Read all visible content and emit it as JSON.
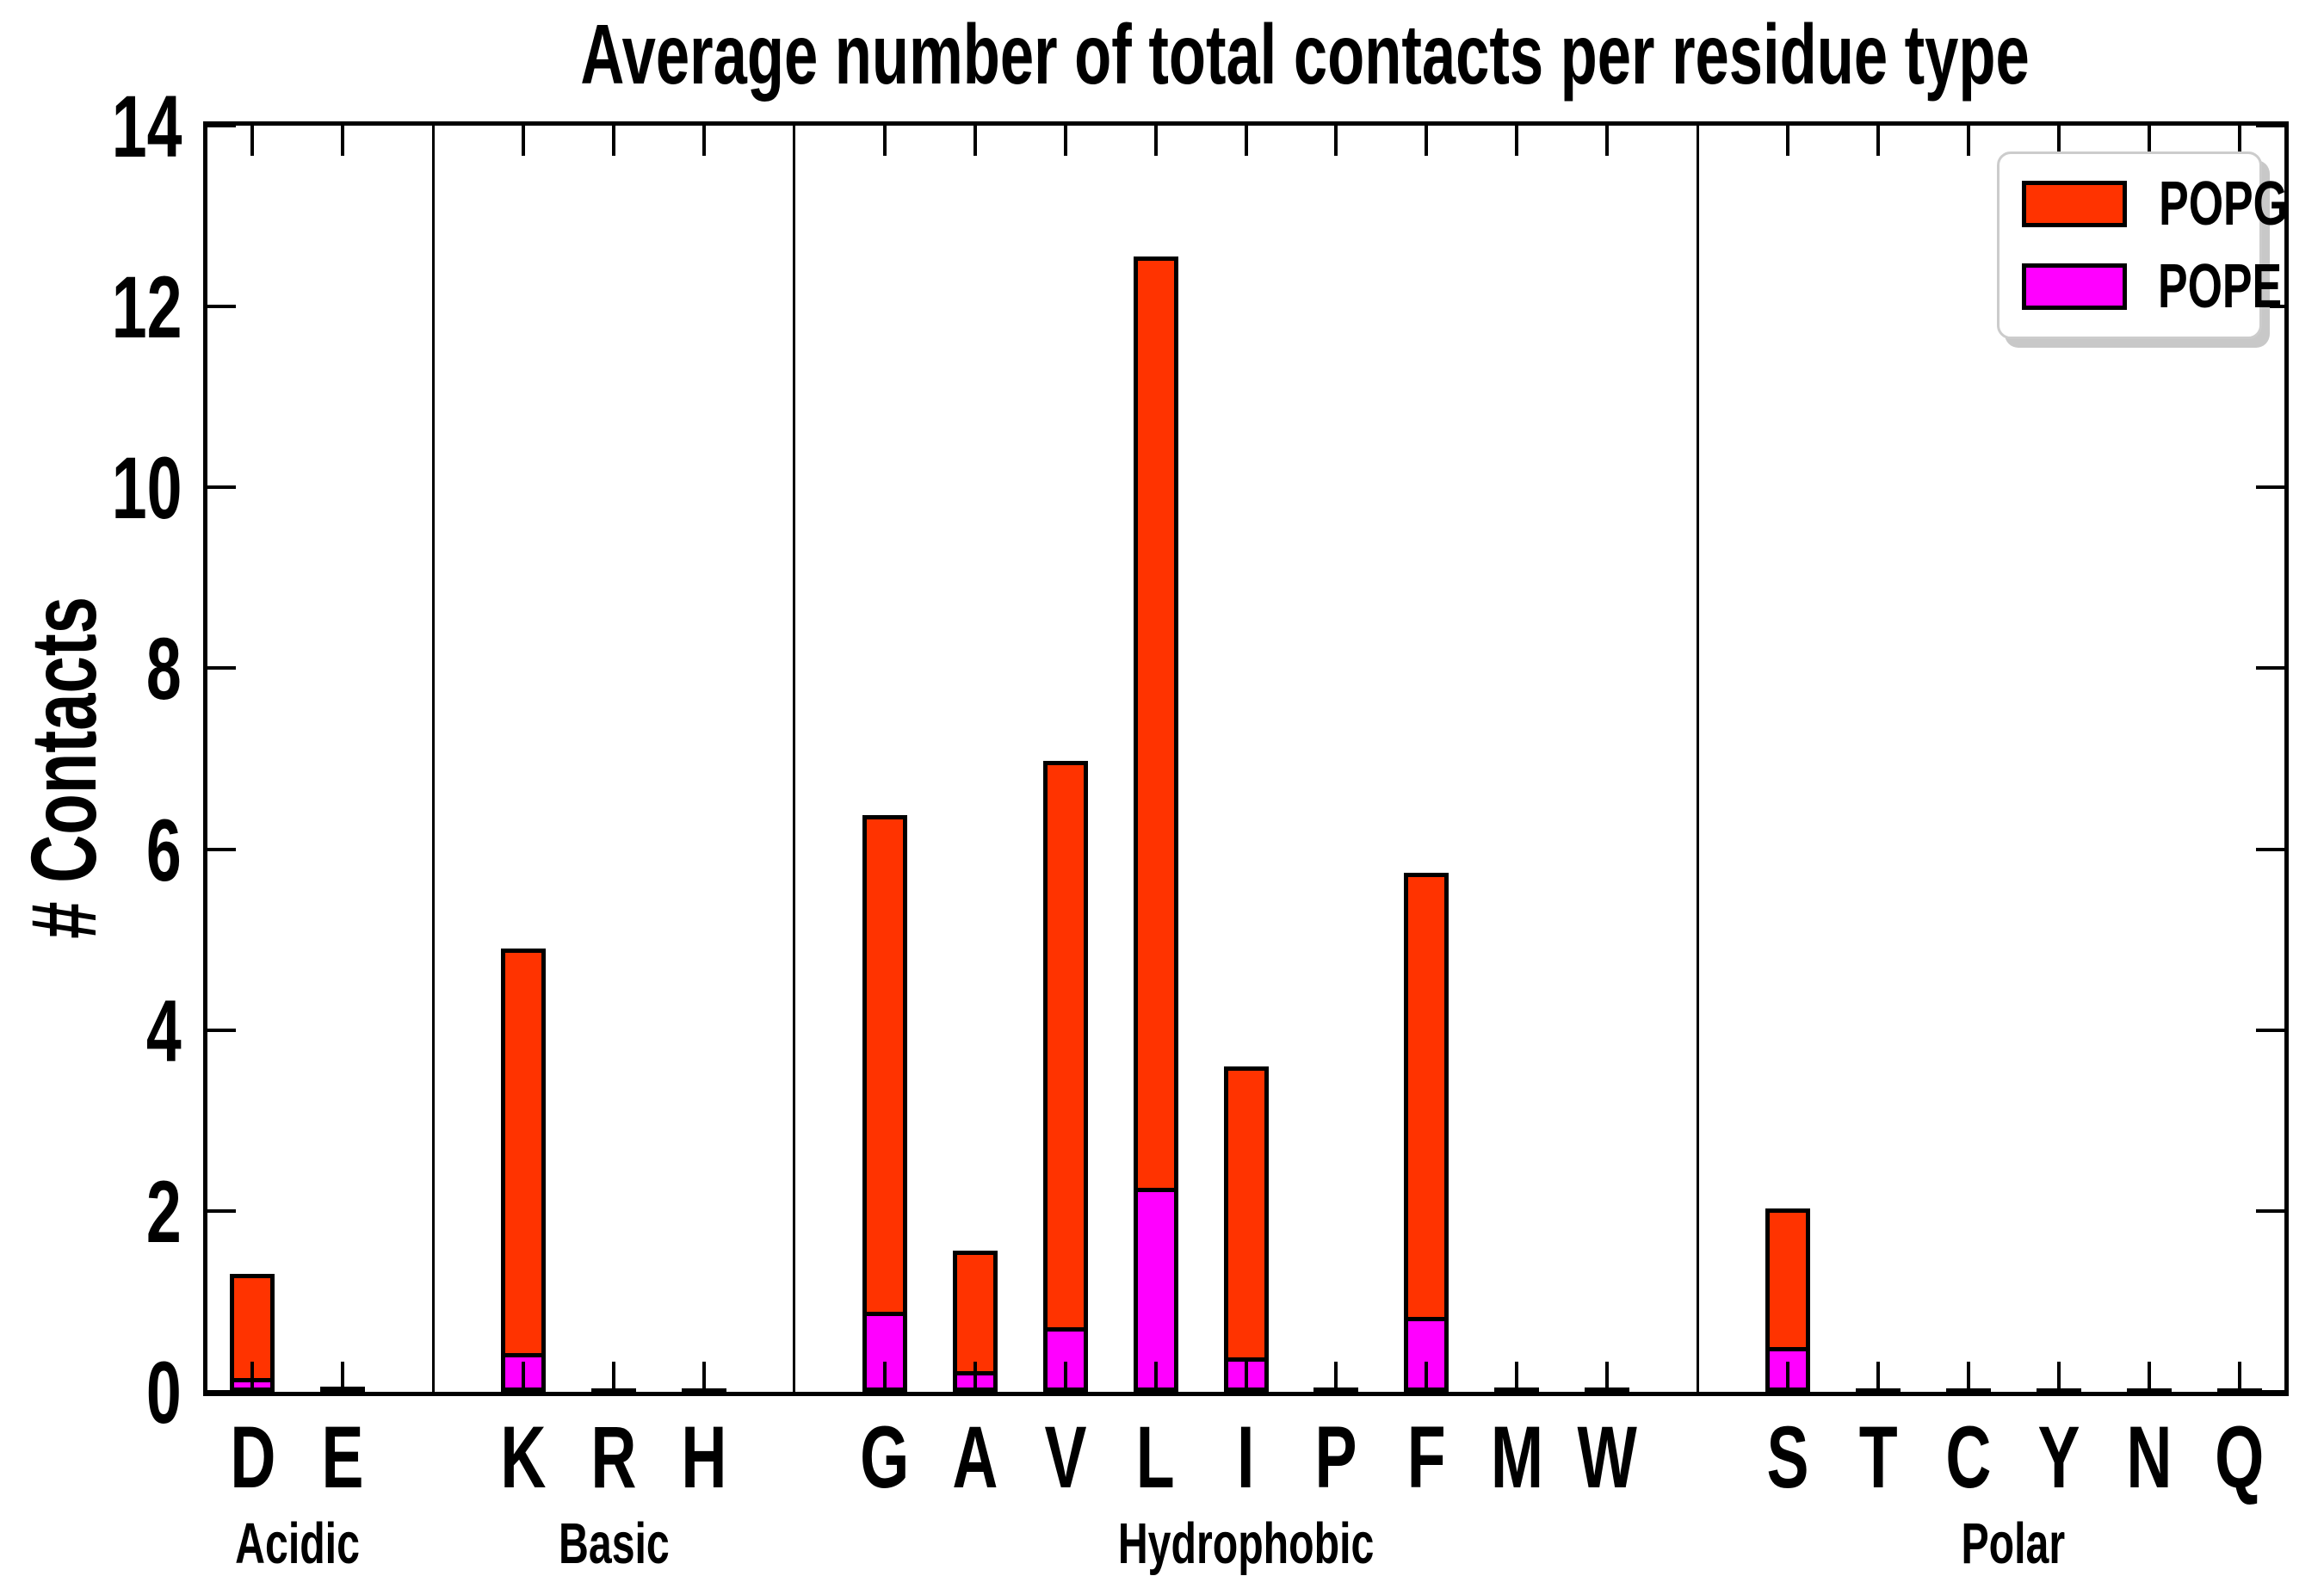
{
  "chart_data": {
    "type": "bar",
    "stacked": true,
    "title": "Average number of total contacts per residue type",
    "xlabel": "",
    "ylabel": "# Contacts",
    "ylim": [
      0,
      14
    ],
    "yticks": [
      0,
      2,
      4,
      6,
      8,
      10,
      12,
      14
    ],
    "grid": false,
    "legend_position": "upper right",
    "legend_items": [
      {
        "name": "POPG",
        "color": "#ff3300"
      },
      {
        "name": "POPE",
        "color": "#ff00ff"
      }
    ],
    "colors": {
      "POPG": "#ff3300",
      "POPE": "#ff00ff",
      "bar_edge": "#000000"
    },
    "groups": [
      {
        "label": "Acidic",
        "residues": [
          "D",
          "E"
        ]
      },
      {
        "label": "Basic",
        "residues": [
          "K",
          "R",
          "H"
        ]
      },
      {
        "label": "Hydrophobic",
        "residues": [
          "G",
          "A",
          "V",
          "L",
          "I",
          "P",
          "F",
          "M",
          "W"
        ]
      },
      {
        "label": "Polar",
        "residues": [
          "S",
          "T",
          "C",
          "Y",
          "N",
          "Q"
        ]
      }
    ],
    "bars": [
      {
        "residue": "D",
        "group": "Acidic",
        "POPE": 0.1,
        "total": 1.3
      },
      {
        "residue": "E",
        "group": "Acidic",
        "POPE": 0.01,
        "total": 0.04
      },
      {
        "residue": "K",
        "group": "Basic",
        "POPE": 0.38,
        "total": 4.9
      },
      {
        "residue": "R",
        "group": "Basic",
        "POPE": 0.01,
        "total": 0.02
      },
      {
        "residue": "H",
        "group": "Basic",
        "POPE": 0.01,
        "total": 0.02
      },
      {
        "residue": "G",
        "group": "Hydrophobic",
        "POPE": 0.84,
        "total": 6.38
      },
      {
        "residue": "A",
        "group": "Hydrophobic",
        "POPE": 0.18,
        "total": 1.56
      },
      {
        "residue": "V",
        "group": "Hydrophobic",
        "POPE": 0.67,
        "total": 6.98
      },
      {
        "residue": "L",
        "group": "Hydrophobic",
        "POPE": 2.21,
        "total": 12.55
      },
      {
        "residue": "I",
        "group": "Hydrophobic",
        "POPE": 0.33,
        "total": 3.6
      },
      {
        "residue": "P",
        "group": "Hydrophobic",
        "POPE": 0.01,
        "total": 0.03
      },
      {
        "residue": "F",
        "group": "Hydrophobic",
        "POPE": 0.78,
        "total": 5.74
      },
      {
        "residue": "M",
        "group": "Hydrophobic",
        "POPE": 0.01,
        "total": 0.03
      },
      {
        "residue": "W",
        "group": "Hydrophobic",
        "POPE": 0.01,
        "total": 0.03
      },
      {
        "residue": "S",
        "group": "Polar",
        "POPE": 0.45,
        "total": 2.03
      },
      {
        "residue": "T",
        "group": "Polar",
        "POPE": 0.01,
        "total": 0.02
      },
      {
        "residue": "C",
        "group": "Polar",
        "POPE": 0.01,
        "total": 0.02
      },
      {
        "residue": "Y",
        "group": "Polar",
        "POPE": 0.01,
        "total": 0.02
      },
      {
        "residue": "N",
        "group": "Polar",
        "POPE": 0.01,
        "total": 0.02
      },
      {
        "residue": "Q",
        "group": "Polar",
        "POPE": 0.01,
        "total": 0.02
      }
    ]
  }
}
